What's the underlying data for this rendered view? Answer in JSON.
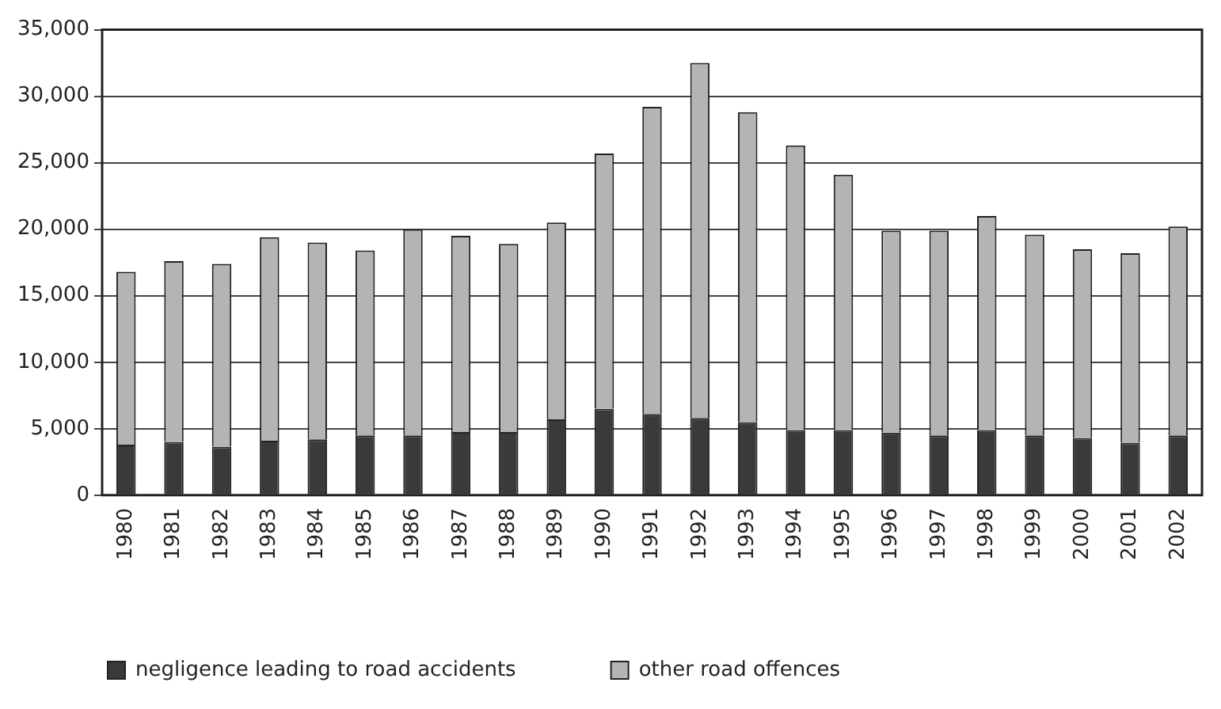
{
  "chart_data": {
    "type": "bar",
    "stacked": true,
    "categories": [
      "1980",
      "1981",
      "1982",
      "1983",
      "1984",
      "1985",
      "1986",
      "1987",
      "1988",
      "1989",
      "1990",
      "1991",
      "1992",
      "1993",
      "1994",
      "1995",
      "1996",
      "1997",
      "1998",
      "1999",
      "2000",
      "2001",
      "2002"
    ],
    "series": [
      {
        "name": "negligence leading to road accidents",
        "color": "#3a3a3a",
        "values": [
          3800,
          4000,
          3650,
          4100,
          4200,
          4500,
          4500,
          4750,
          4750,
          5700,
          6500,
          6100,
          5800,
          5500,
          4900,
          4900,
          4700,
          4500,
          4900,
          4500,
          4300,
          3950,
          4500
        ]
      },
      {
        "name": "other road offences",
        "color": "#b4b4b4",
        "values": [
          13000,
          13600,
          13750,
          15300,
          14800,
          13900,
          15500,
          14750,
          14150,
          14800,
          19200,
          23100,
          26700,
          23300,
          21400,
          19200,
          15200,
          15400,
          16100,
          15100,
          14200,
          14250,
          15700
        ]
      }
    ],
    "ylim": [
      0,
      35000
    ],
    "yticks": [
      {
        "value": 0,
        "label": "0"
      },
      {
        "value": 5000,
        "label": "5,000"
      },
      {
        "value": 10000,
        "label": "10,000"
      },
      {
        "value": 15000,
        "label": "15,000"
      },
      {
        "value": 20000,
        "label": "20,000"
      },
      {
        "value": 25000,
        "label": "25,000"
      },
      {
        "value": 30000,
        "label": "30,000"
      },
      {
        "value": 35000,
        "label": "35,000"
      }
    ],
    "grid": "y",
    "legend": "bottom left"
  }
}
